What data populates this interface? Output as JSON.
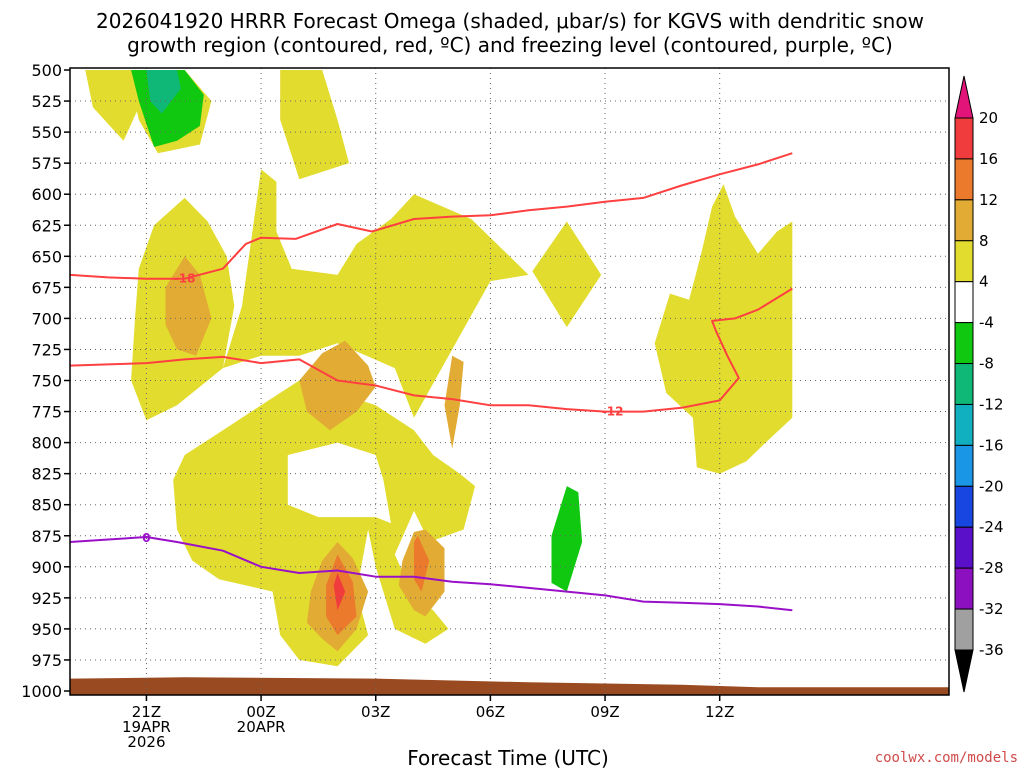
{
  "chart_data": {
    "type": "time-height contour",
    "title_line1": "2026041920 HRRR Forecast Omega (shaded, μbar/s) for KGVS with dendritic snow",
    "title_line2": "growth region (contoured, red, ºC) and freezing level (contoured, purple, ºC)",
    "xlabel": "Forecast Time (UTC)",
    "credit": "coolwx.com/models",
    "y_ticks": [
      500,
      525,
      550,
      575,
      600,
      625,
      650,
      675,
      700,
      725,
      750,
      775,
      800,
      825,
      850,
      875,
      900,
      925,
      950,
      975,
      1000
    ],
    "x_range_hours": [
      19,
      42
    ],
    "x_ticks": [
      {
        "hour": 21,
        "lines": [
          "21Z",
          "19APR",
          "2026"
        ]
      },
      {
        "hour": 24,
        "lines": [
          "00Z",
          "20APR"
        ]
      },
      {
        "hour": 27,
        "lines": [
          "03Z"
        ]
      },
      {
        "hour": 30,
        "lines": [
          "06Z"
        ]
      },
      {
        "hour": 33,
        "lines": [
          "09Z"
        ]
      },
      {
        "hour": 36,
        "lines": [
          "12Z"
        ]
      }
    ],
    "colorbar": {
      "levels": [
        20,
        16,
        12,
        8,
        4,
        -4,
        -8,
        -12,
        -16,
        -20,
        -24,
        -28,
        -32,
        -36
      ],
      "colors": [
        "#f03c3c",
        "#ec7a2c",
        "#e2ac34",
        "#e2dc2e",
        "#ffffff",
        "#10c810",
        "#10b878",
        "#10b0c0",
        "#1a96e6",
        "#1846e0",
        "#5a10c8",
        "#8c10c0",
        "#a0a0a0"
      ],
      "top_arrow_color": "#e2147a",
      "bottom_arrow_color": "#000000"
    },
    "series": [
      {
        "name": "-18 ºC isotherm",
        "color": "#ff4040",
        "label": "-18",
        "label_at": [
          22.0,
          668
        ],
        "points": [
          [
            19,
            665
          ],
          [
            20,
            667
          ],
          [
            21,
            668
          ],
          [
            22,
            668
          ],
          [
            23.0,
            660
          ],
          [
            23.6,
            640
          ],
          [
            24.0,
            635
          ],
          [
            24.9,
            636
          ],
          [
            26.0,
            624
          ],
          [
            26.9,
            630
          ],
          [
            28.0,
            620
          ],
          [
            29.0,
            618
          ],
          [
            30.0,
            617
          ],
          [
            31.0,
            613
          ],
          [
            32.0,
            610
          ],
          [
            33.0,
            606
          ],
          [
            34.0,
            603
          ],
          [
            35.0,
            593
          ],
          [
            36.0,
            584
          ],
          [
            37.0,
            576
          ],
          [
            37.9,
            567
          ]
        ]
      },
      {
        "name": "-12 ºC isotherm",
        "color": "#ff4040",
        "label": "-12",
        "label_at": [
          33.2,
          775
        ],
        "points": [
          [
            19,
            738
          ],
          [
            20,
            737
          ],
          [
            21,
            736
          ],
          [
            22,
            733
          ],
          [
            23.0,
            731
          ],
          [
            24.0,
            736
          ],
          [
            25.0,
            733
          ],
          [
            26.0,
            750
          ],
          [
            27.0,
            754
          ],
          [
            28.0,
            762
          ],
          [
            29.0,
            765
          ],
          [
            30.0,
            770
          ],
          [
            31.0,
            770
          ],
          [
            32.0,
            773
          ],
          [
            33.0,
            775
          ],
          [
            34.0,
            775
          ],
          [
            35.0,
            772
          ],
          [
            36.0,
            766
          ],
          [
            36.5,
            748
          ],
          [
            36.2,
            730
          ],
          [
            35.9,
            710
          ],
          [
            35.8,
            702
          ],
          [
            36.4,
            700
          ],
          [
            37.0,
            693
          ],
          [
            37.9,
            676
          ]
        ]
      },
      {
        "name": "0 ºC freezing level",
        "color": "#9a10c8",
        "label": "0",
        "label_at": [
          21.0,
          877
        ],
        "points": [
          [
            19,
            880
          ],
          [
            20,
            878
          ],
          [
            21,
            876
          ],
          [
            21.8,
            880
          ],
          [
            23.0,
            887
          ],
          [
            24.0,
            900
          ],
          [
            25.0,
            905
          ],
          [
            26.0,
            903
          ],
          [
            27.0,
            908
          ],
          [
            28.0,
            908
          ],
          [
            29.0,
            912
          ],
          [
            30.0,
            914
          ],
          [
            31.0,
            917
          ],
          [
            32.0,
            920
          ],
          [
            33.0,
            923
          ],
          [
            34.0,
            928
          ],
          [
            35.0,
            929
          ],
          [
            36.0,
            930
          ],
          [
            37.0,
            932
          ],
          [
            37.9,
            935
          ]
        ]
      }
    ],
    "shaded_regions": [
      {
        "level": "4 to 8",
        "color": "#e2dc2e",
        "polygons": [
          [
            [
              19.4,
              500
            ],
            [
              20.5,
              500
            ],
            [
              20.8,
              530
            ],
            [
              20.4,
              557
            ],
            [
              19.6,
              530
            ]
          ],
          [
            [
              20.5,
              500
            ],
            [
              22.0,
              500
            ],
            [
              22.7,
              525
            ],
            [
              22.4,
              560
            ],
            [
              21.3,
              567
            ],
            [
              20.8,
              540
            ]
          ],
          [
            [
              24.5,
              500
            ],
            [
              25.6,
              500
            ],
            [
              26.0,
              540
            ],
            [
              26.3,
              575
            ],
            [
              25.0,
              588
            ],
            [
              24.5,
              540
            ]
          ],
          [
            [
              21.2,
              625
            ],
            [
              22.0,
              603
            ],
            [
              22.6,
              622
            ],
            [
              23.1,
              650
            ],
            [
              23.3,
              690
            ],
            [
              23.0,
              740
            ],
            [
              21.8,
              770
            ],
            [
              21.0,
              782
            ],
            [
              20.6,
              750
            ],
            [
              20.7,
              700
            ],
            [
              20.8,
              660
            ]
          ],
          [
            [
              24.0,
              580
            ],
            [
              24.4,
              590
            ],
            [
              24.4,
              630
            ],
            [
              24.8,
              660
            ],
            [
              26.0,
              665
            ],
            [
              26.5,
              640
            ],
            [
              27.4,
              620
            ],
            [
              28.0,
              600
            ],
            [
              29.5,
              620
            ],
            [
              31.0,
              665
            ],
            [
              30.0,
              670
            ],
            [
              29.0,
              725
            ],
            [
              28.0,
              780
            ],
            [
              27.5,
              740
            ],
            [
              26.0,
              720
            ],
            [
              25.0,
              730
            ],
            [
              24.0,
              730
            ],
            [
              23.0,
              740
            ],
            [
              23.5,
              690
            ]
          ],
          [
            [
              31.1,
              662
            ],
            [
              32.0,
              622
            ],
            [
              32.9,
              665
            ],
            [
              32.0,
              707
            ]
          ],
          [
            [
              22.0,
              810
            ],
            [
              23.0,
              790
            ],
            [
              24.0,
              770
            ],
            [
              25.0,
              750
            ],
            [
              26.0,
              760
            ],
            [
              27.0,
              770
            ],
            [
              28.0,
              790
            ],
            [
              28.5,
              810
            ],
            [
              29.2,
              825
            ],
            [
              29.6,
              835
            ],
            [
              29.3,
              870
            ],
            [
              28.4,
              880
            ],
            [
              28.0,
              855
            ],
            [
              27.5,
              890
            ],
            [
              28.0,
              925
            ],
            [
              28.5,
              935
            ],
            [
              28.9,
              950
            ],
            [
              28.3,
              962
            ],
            [
              27.5,
              950
            ],
            [
              27.3,
              930
            ],
            [
              27.0,
              900
            ],
            [
              26.8,
              870
            ],
            [
              27.0,
              860
            ],
            [
              27.4,
              865
            ],
            [
              27.2,
              830
            ],
            [
              27.0,
              810
            ],
            [
              26.0,
              800
            ],
            [
              24.7,
              810
            ],
            [
              24.7,
              850
            ],
            [
              25.5,
              860
            ],
            [
              27.0,
              860
            ],
            [
              26.8,
              870
            ],
            [
              26.5,
              920
            ],
            [
              26.8,
              955
            ],
            [
              26.0,
              980
            ],
            [
              25.0,
              975
            ],
            [
              24.5,
              955
            ],
            [
              24.3,
              920
            ],
            [
              22.9,
              910
            ],
            [
              22.2,
              895
            ],
            [
              21.8,
              870
            ],
            [
              21.7,
              830
            ]
          ],
          [
            [
              35.2,
              685
            ],
            [
              35.5,
              650
            ],
            [
              35.8,
              610
            ],
            [
              36.1,
              592
            ],
            [
              36.4,
              618
            ],
            [
              37.0,
              648
            ],
            [
              37.5,
              630
            ],
            [
              37.9,
              622
            ],
            [
              37.9,
              780
            ],
            [
              37.2,
              800
            ],
            [
              36.7,
              815
            ],
            [
              36.0,
              825
            ],
            [
              35.4,
              820
            ],
            [
              35.3,
              780
            ],
            [
              34.6,
              760
            ],
            [
              34.3,
              720
            ],
            [
              34.7,
              680
            ]
          ]
        ]
      },
      {
        "level": "8 to 12",
        "color": "#e2ac34",
        "polygons": [
          [
            [
              21.5,
              675
            ],
            [
              22.0,
              650
            ],
            [
              22.4,
              665
            ],
            [
              22.7,
              700
            ],
            [
              22.3,
              730
            ],
            [
              21.8,
              725
            ],
            [
              21.5,
              705
            ]
          ],
          [
            [
              25.0,
              750
            ],
            [
              25.6,
              728
            ],
            [
              26.2,
              718
            ],
            [
              26.8,
              738
            ],
            [
              27.0,
              755
            ],
            [
              26.5,
              775
            ],
            [
              25.8,
              790
            ],
            [
              25.2,
              775
            ]
          ],
          [
            [
              28.8,
              770
            ],
            [
              29.0,
              730
            ],
            [
              29.3,
              735
            ],
            [
              29.2,
              770
            ],
            [
              29.0,
              805
            ]
          ],
          [
            [
              27.7,
              895
            ],
            [
              28.0,
              872
            ],
            [
              28.3,
              870
            ],
            [
              28.8,
              885
            ],
            [
              28.8,
              920
            ],
            [
              28.3,
              940
            ],
            [
              28.0,
              935
            ],
            [
              27.6,
              915
            ]
          ],
          [
            [
              25.3,
              920
            ],
            [
              25.6,
              895
            ],
            [
              26.0,
              880
            ],
            [
              26.4,
              893
            ],
            [
              26.8,
              920
            ],
            [
              26.5,
              950
            ],
            [
              26.0,
              968
            ],
            [
              25.6,
              958
            ],
            [
              25.2,
              945
            ]
          ]
        ]
      },
      {
        "level": "12 to 16",
        "color": "#ec7a2c",
        "polygons": [
          [
            [
              25.7,
              915
            ],
            [
              26.0,
              890
            ],
            [
              26.4,
              912
            ],
            [
              26.5,
              940
            ],
            [
              26.0,
              955
            ],
            [
              25.7,
              940
            ]
          ],
          [
            [
              28.0,
              880
            ],
            [
              28.1,
              875
            ],
            [
              28.4,
              895
            ],
            [
              28.2,
              920
            ],
            [
              28.0,
              910
            ]
          ]
        ]
      },
      {
        "level": "16 to 20",
        "color": "#f03c3c",
        "polygons": [
          [
            [
              25.9,
              915
            ],
            [
              26.0,
              905
            ],
            [
              26.2,
              920
            ],
            [
              26.0,
              935
            ]
          ]
        ]
      },
      {
        "level": "-4 to -8",
        "color": "#10c810",
        "polygons": [
          [
            [
              20.6,
              500
            ],
            [
              20.8,
              500
            ],
            [
              22.0,
              500
            ],
            [
              22.5,
              520
            ],
            [
              22.4,
              545
            ],
            [
              21.8,
              557
            ],
            [
              21.2,
              562
            ],
            [
              20.8,
              525
            ]
          ],
          [
            [
              31.6,
              875
            ],
            [
              32.0,
              835
            ],
            [
              32.3,
              840
            ],
            [
              32.4,
              880
            ],
            [
              32.0,
              920
            ],
            [
              31.6,
              913
            ]
          ]
        ]
      },
      {
        "level": "-8 to -12",
        "color": "#10b878",
        "polygons": [
          [
            [
              21.0,
              500
            ],
            [
              21.8,
              500
            ],
            [
              21.9,
              515
            ],
            [
              21.4,
              535
            ],
            [
              21.1,
              525
            ]
          ]
        ]
      }
    ]
  }
}
